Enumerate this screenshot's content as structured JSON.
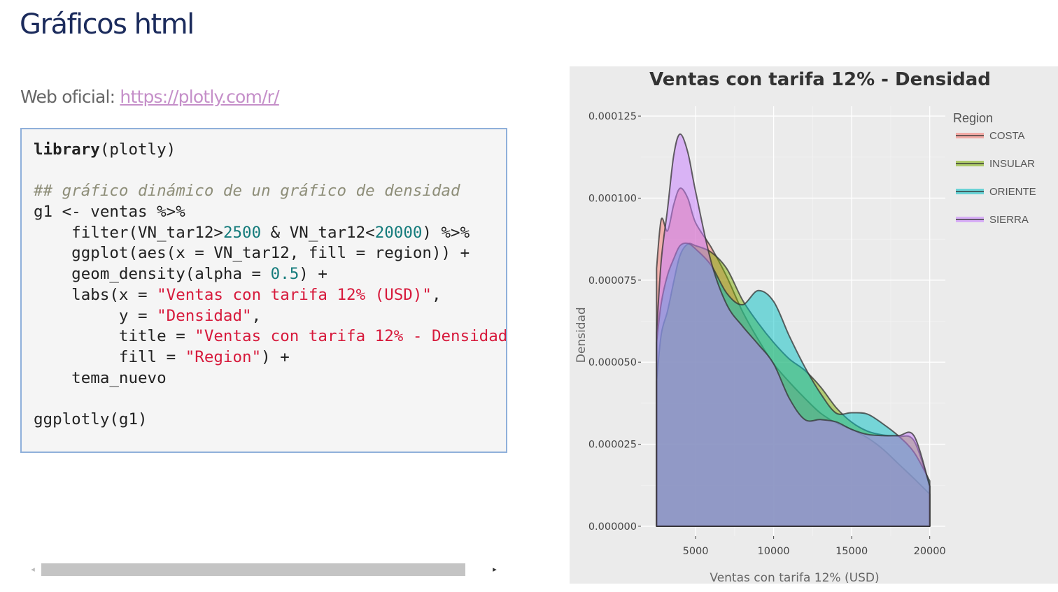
{
  "page": {
    "title": "Gráficos html",
    "web_label": "Web oficial: ",
    "web_link": "https://plotly.com/r/"
  },
  "code": {
    "lines": [
      [
        {
          "t": "library",
          "c": "kw"
        },
        {
          "t": "(plotly)"
        }
      ],
      [],
      [
        {
          "t": "## gráfico dinámico de un gráfico de densidad",
          "c": "cm"
        }
      ],
      [
        {
          "t": "g1 <- ventas %>%"
        }
      ],
      [
        {
          "t": "    filter(VN_tar12>"
        },
        {
          "t": "2500",
          "c": "nm"
        },
        {
          "t": " & VN_tar12<"
        },
        {
          "t": "20000",
          "c": "nm"
        },
        {
          "t": ") %>%"
        }
      ],
      [
        {
          "t": "    ggplot(aes(x = VN_tar12, fill = region)) +"
        }
      ],
      [
        {
          "t": "    geom_density(alpha = "
        },
        {
          "t": "0.5",
          "c": "nm"
        },
        {
          "t": ") +"
        }
      ],
      [
        {
          "t": "    labs(x = "
        },
        {
          "t": "\"Ventas con tarifa 12% (USD)\"",
          "c": "st"
        },
        {
          "t": ","
        }
      ],
      [
        {
          "t": "         y = "
        },
        {
          "t": "\"Densidad\"",
          "c": "st"
        },
        {
          "t": ","
        }
      ],
      [
        {
          "t": "         title = "
        },
        {
          "t": "\"Ventas con tarifa 12% - Densidad\"",
          "c": "st"
        },
        {
          "t": ","
        }
      ],
      [
        {
          "t": "         fill = "
        },
        {
          "t": "\"Region\"",
          "c": "st"
        },
        {
          "t": ") +"
        }
      ],
      [
        {
          "t": "    tema_nuevo"
        }
      ],
      [],
      [
        {
          "t": "ggplotly(g1)"
        }
      ]
    ],
    "scroll_left_icon": "◂",
    "scroll_right_icon": "▸"
  },
  "chart_data": {
    "type": "area",
    "title": "Ventas con tarifa 12% - Densidad",
    "xlabel": "Ventas con tarifa 12% (USD)",
    "ylabel": "Densidad",
    "xlim": [
      1500,
      21000
    ],
    "ylim": [
      -3e-06,
      0.000128
    ],
    "x_ticks": [
      5000,
      10000,
      15000,
      20000
    ],
    "x_tick_labels": [
      "5000",
      "10000",
      "15000",
      "20000"
    ],
    "y_ticks": [
      0,
      2.5e-05,
      5e-05,
      7.5e-05,
      0.0001,
      0.000125
    ],
    "y_tick_labels": [
      "0.000000",
      "0.000025",
      "0.000050",
      "0.000075",
      "0.000100",
      "0.000125"
    ],
    "legend_title": "Region",
    "legend_position": "right",
    "grid": true,
    "background": "#ebebeb",
    "series": [
      {
        "name": "COSTA",
        "fill": "#f8766d",
        "x": [
          2500,
          2800,
          3200,
          3600,
          4000,
          4500,
          5000,
          6000,
          7000,
          8000,
          9000,
          10000,
          11000,
          12000,
          13000,
          14000,
          15000,
          16000,
          17000,
          18000,
          19000,
          20000
        ],
        "y": [
          7.86e-05,
          9.35e-05,
          9e-05,
          9.8e-05,
          0.000103,
          0.0001,
          9.25e-05,
          8.5e-05,
          7.6e-05,
          6.55e-05,
          5.7e-05,
          4.95e-05,
          4.4e-05,
          3.9e-05,
          3.45e-05,
          3.15e-05,
          2.95e-05,
          2.7e-05,
          2.35e-05,
          1.9e-05,
          1.45e-05,
          9.8e-06
        ]
      },
      {
        "name": "INSULAR",
        "fill": "#7cae00",
        "x": [
          2500,
          2800,
          3200,
          3600,
          4000,
          4500,
          5000,
          6000,
          7000,
          8000,
          9000,
          10000,
          11000,
          12000,
          13000,
          14000,
          15000,
          16000,
          17000,
          18000,
          19000,
          20000
        ],
        "y": [
          4.42e-05,
          5.85e-05,
          6.55e-05,
          7.45e-05,
          8.25e-05,
          8.6e-05,
          8.55e-05,
          8.35e-05,
          7.85e-05,
          6.9e-05,
          6.2e-05,
          5.6e-05,
          5.1e-05,
          4.75e-05,
          4.25e-05,
          3.62e-05,
          3.17e-05,
          2.9e-05,
          2.78e-05,
          2.74e-05,
          2.6e-05,
          1.22e-05
        ]
      },
      {
        "name": "ORIENTE",
        "fill": "#00bfc4",
        "x": [
          2500,
          2800,
          3200,
          3600,
          4000,
          4500,
          5000,
          6000,
          7000,
          8000,
          9000,
          10000,
          11000,
          12000,
          13000,
          14000,
          15000,
          16000,
          17000,
          18000,
          19000,
          20000
        ],
        "y": [
          5.6e-05,
          6.8e-05,
          7.65e-05,
          8.15e-05,
          8.55e-05,
          8.62e-05,
          8.45e-05,
          7.95e-05,
          7.1e-05,
          6.75e-05,
          7.18e-05,
          6.85e-05,
          5.8e-05,
          4.85e-05,
          4.05e-05,
          3.45e-05,
          3.46e-05,
          3.42e-05,
          3.12e-05,
          2.75e-05,
          2.25e-05,
          1.38e-05
        ]
      },
      {
        "name": "SIERRA",
        "fill": "#c77cff",
        "x": [
          2500,
          2800,
          3200,
          3600,
          4000,
          4500,
          5000,
          6000,
          7000,
          8000,
          9000,
          10000,
          11000,
          12000,
          13000,
          14000,
          15000,
          16000,
          17000,
          18000,
          19000,
          20000
        ],
        "y": [
          5.9e-05,
          8.1e-05,
          9.65e-05,
          0.000113,
          0.0001195,
          0.000114,
          0.000102,
          8.05e-05,
          6.75e-05,
          6.1e-05,
          5.55e-05,
          4.95e-05,
          3.9e-05,
          3.25e-05,
          3.25e-05,
          3.18e-05,
          2.95e-05,
          2.8e-05,
          2.76e-05,
          2.76e-05,
          2.75e-05,
          1.22e-05
        ]
      }
    ]
  }
}
